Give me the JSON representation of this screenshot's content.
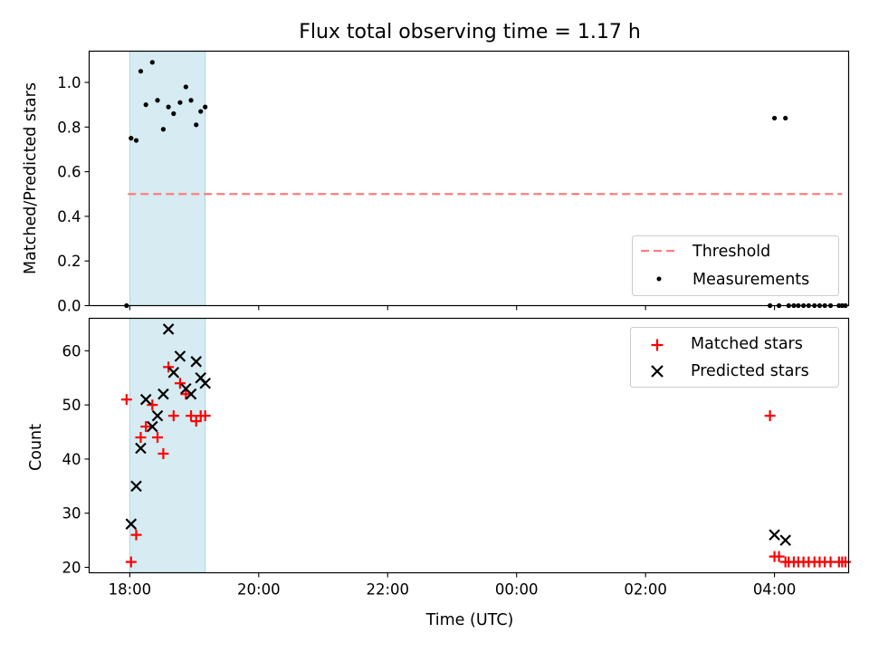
{
  "chart_data": {
    "title": "Flux total observing time = 1.17 h",
    "xlabel": "Time (UTC)",
    "x_unit": "hours (UTC, 24 = midnight of next day)",
    "x_ticks": [
      {
        "value": 18,
        "label": "18:00"
      },
      {
        "value": 20,
        "label": "20:00"
      },
      {
        "value": 22,
        "label": "22:00"
      },
      {
        "value": 24,
        "label": "00:00"
      },
      {
        "value": 26,
        "label": "02:00"
      },
      {
        "value": 28,
        "label": "04:00"
      }
    ],
    "xlim": [
      17.37,
      29.15
    ],
    "highlight_span": {
      "x_start": 18.0,
      "x_end": 19.17,
      "color": "#add8e6"
    },
    "panels": [
      {
        "type": "scatter",
        "ylabel": "Matched/Predicted stars",
        "ylim": [
          0,
          1.14
        ],
        "y_ticks": [
          "0.0",
          "0.2",
          "0.4",
          "0.6",
          "0.8",
          "1.0"
        ],
        "y_tick_values": [
          0,
          0.2,
          0.4,
          0.6,
          0.8,
          1.0
        ],
        "legend_position": "lower right",
        "threshold": {
          "name": "Threshold",
          "value": 0.5,
          "x_start": 17.97,
          "x_end": 29.05,
          "color": "#ff7f7f"
        },
        "measurements": {
          "name": "Measurements",
          "color": "#000000",
          "points": [
            [
              17.95,
              0.0
            ],
            [
              18.02,
              0.75
            ],
            [
              18.1,
              0.74
            ],
            [
              18.17,
              1.05
            ],
            [
              18.25,
              0.9
            ],
            [
              18.35,
              1.09
            ],
            [
              18.43,
              0.92
            ],
            [
              18.52,
              0.79
            ],
            [
              18.6,
              0.89
            ],
            [
              18.68,
              0.86
            ],
            [
              18.78,
              0.91
            ],
            [
              18.87,
              0.98
            ],
            [
              18.95,
              0.92
            ],
            [
              19.03,
              0.81
            ],
            [
              19.1,
              0.87
            ],
            [
              19.17,
              0.89
            ],
            [
              27.93,
              0.0
            ],
            [
              28.0,
              0.84
            ],
            [
              28.07,
              0.0
            ],
            [
              28.17,
              0.84
            ],
            [
              28.22,
              0.0
            ],
            [
              28.3,
              0.0
            ],
            [
              28.37,
              0.0
            ],
            [
              28.45,
              0.0
            ],
            [
              28.53,
              0.0
            ],
            [
              28.62,
              0.0
            ],
            [
              28.7,
              0.0
            ],
            [
              28.78,
              0.0
            ],
            [
              28.87,
              0.0
            ],
            [
              29.0,
              0.0
            ],
            [
              29.05,
              0.0
            ],
            [
              29.1,
              0.0
            ]
          ]
        }
      },
      {
        "type": "scatter",
        "ylabel": "Count",
        "ylim": [
          19,
          66
        ],
        "y_ticks": [
          "20",
          "30",
          "40",
          "50",
          "60"
        ],
        "y_tick_values": [
          20,
          30,
          40,
          50,
          60
        ],
        "legend_position": "upper right",
        "series": [
          {
            "name": "Matched stars",
            "marker": "+",
            "color": "#ff0000",
            "points": [
              [
                17.95,
                51
              ],
              [
                18.02,
                21
              ],
              [
                18.1,
                26
              ],
              [
                18.17,
                44
              ],
              [
                18.25,
                46
              ],
              [
                18.35,
                50
              ],
              [
                18.43,
                44
              ],
              [
                18.52,
                41
              ],
              [
                18.6,
                57
              ],
              [
                18.68,
                48
              ],
              [
                18.78,
                54
              ],
              [
                18.87,
                52
              ],
              [
                18.95,
                48
              ],
              [
                19.03,
                47
              ],
              [
                19.1,
                48
              ],
              [
                19.17,
                48
              ],
              [
                27.93,
                48
              ],
              [
                28.0,
                22
              ],
              [
                28.07,
                22
              ],
              [
                28.17,
                21
              ],
              [
                28.22,
                21
              ],
              [
                28.3,
                21
              ],
              [
                28.37,
                21
              ],
              [
                28.45,
                21
              ],
              [
                28.53,
                21
              ],
              [
                28.62,
                21
              ],
              [
                28.7,
                21
              ],
              [
                28.78,
                21
              ],
              [
                28.87,
                21
              ],
              [
                29.0,
                21
              ],
              [
                29.05,
                21
              ],
              [
                29.1,
                21
              ]
            ]
          },
          {
            "name": "Predicted stars",
            "marker": "x",
            "color": "#000000",
            "points": [
              [
                18.02,
                28
              ],
              [
                18.1,
                35
              ],
              [
                18.17,
                42
              ],
              [
                18.25,
                51
              ],
              [
                18.35,
                46
              ],
              [
                18.43,
                48
              ],
              [
                18.52,
                52
              ],
              [
                18.6,
                64
              ],
              [
                18.68,
                56
              ],
              [
                18.78,
                59
              ],
              [
                18.87,
                53
              ],
              [
                18.95,
                52
              ],
              [
                19.03,
                58
              ],
              [
                19.1,
                55
              ],
              [
                19.17,
                54
              ],
              [
                28.0,
                26
              ],
              [
                28.17,
                25
              ]
            ]
          }
        ]
      }
    ]
  }
}
